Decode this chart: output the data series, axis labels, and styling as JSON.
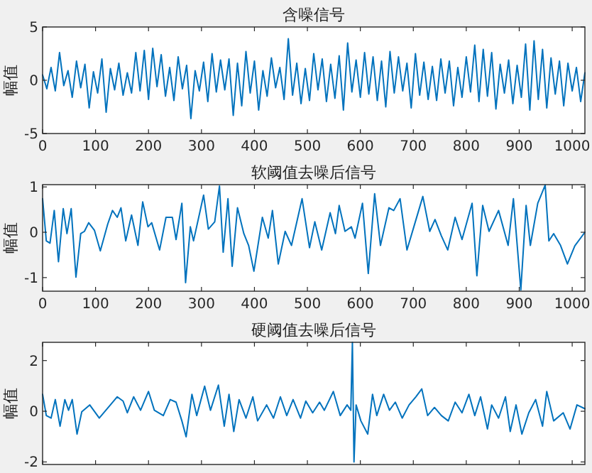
{
  "chart_data": [
    {
      "type": "line",
      "title": "含噪信号",
      "ylabel": "幅值",
      "color": "#0072bd",
      "xlim": [
        0,
        1024
      ],
      "ylim": [
        -5,
        5
      ],
      "xticks": [
        0,
        100,
        200,
        300,
        400,
        500,
        600,
        700,
        800,
        900,
        1000
      ],
      "yticks": [
        -5,
        0,
        5
      ],
      "x": [
        0,
        8,
        16,
        24,
        32,
        40,
        48,
        56,
        64,
        72,
        80,
        88,
        96,
        104,
        112,
        120,
        128,
        136,
        144,
        152,
        160,
        168,
        176,
        184,
        192,
        200,
        208,
        216,
        224,
        232,
        240,
        248,
        256,
        264,
        272,
        280,
        288,
        296,
        304,
        312,
        320,
        328,
        336,
        344,
        352,
        360,
        368,
        376,
        384,
        392,
        400,
        408,
        416,
        424,
        432,
        440,
        448,
        456,
        464,
        472,
        480,
        488,
        496,
        504,
        512,
        520,
        528,
        536,
        544,
        552,
        560,
        568,
        576,
        584,
        592,
        600,
        608,
        616,
        624,
        632,
        640,
        648,
        656,
        664,
        672,
        680,
        688,
        696,
        704,
        712,
        720,
        728,
        736,
        744,
        752,
        760,
        768,
        776,
        784,
        792,
        800,
        808,
        816,
        824,
        832,
        840,
        848,
        856,
        864,
        872,
        880,
        888,
        896,
        904,
        912,
        920,
        928,
        936,
        944,
        952,
        960,
        968,
        976,
        984,
        992,
        1000,
        1008,
        1016,
        1024
      ],
      "values": [
        0.5,
        -0.8,
        1.2,
        -1.0,
        2.6,
        -0.5,
        0.9,
        -1.6,
        1.8,
        -0.7,
        1.5,
        -2.6,
        0.8,
        -1.2,
        2.0,
        -3.0,
        1.1,
        -0.9,
        1.6,
        -1.4,
        0.7,
        -1.2,
        2.6,
        -1.0,
        2.8,
        -1.8,
        3.0,
        -0.6,
        2.4,
        -1.5,
        1.2,
        -1.9,
        2.2,
        -0.8,
        1.4,
        -3.6,
        0.9,
        -1.0,
        1.7,
        -2.0,
        2.5,
        -1.1,
        1.9,
        -0.9,
        2.0,
        -3.3,
        1.6,
        -2.4,
        2.7,
        -1.2,
        1.8,
        -2.8,
        0.9,
        -1.5,
        2.1,
        -0.7,
        1.2,
        -1.8,
        3.9,
        -1.4,
        1.6,
        -2.2,
        1.1,
        -1.9,
        2.5,
        -0.9,
        2.0,
        -2.0,
        1.5,
        -1.7,
        2.3,
        -2.8,
        3.5,
        -1.1,
        1.9,
        -1.6,
        2.6,
        -1.3,
        2.2,
        -1.9,
        1.8,
        -2.5,
        2.7,
        -1.2,
        2.2,
        -1.0,
        1.6,
        -2.6,
        2.5,
        -1.4,
        1.7,
        -1.8,
        1.3,
        -1.9,
        2.0,
        -1.2,
        1.8,
        -2.4,
        1.2,
        -1.6,
        2.2,
        -1.1,
        3.3,
        -2.0,
        2.9,
        -1.5,
        2.6,
        -2.7,
        1.5,
        -1.2,
        1.9,
        -2.2,
        1.4,
        -1.6,
        3.4,
        -2.8,
        3.7,
        -1.8,
        2.9,
        -2.6,
        2.1,
        -1.3,
        1.8,
        -2.4,
        1.6,
        -1.0,
        1.2,
        -2.0,
        0.7
      ]
    },
    {
      "type": "line",
      "title": "软阈值去噪后信号",
      "ylabel": "幅值",
      "color": "#0072bd",
      "xlim": [
        0,
        1024
      ],
      "ylim": [
        -1.3,
        1.05
      ],
      "xticks": [
        0,
        100,
        200,
        300,
        400,
        500,
        600,
        700,
        800,
        900,
        1000
      ],
      "yticks": [
        -1,
        0,
        1
      ],
      "x": [
        0,
        7,
        14,
        22,
        30,
        39,
        46,
        54,
        63,
        72,
        79,
        87,
        98,
        109,
        123,
        132,
        141,
        148,
        157,
        168,
        180,
        189,
        199,
        206,
        221,
        233,
        245,
        252,
        263,
        270,
        279,
        285,
        304,
        313,
        325,
        334,
        341,
        350,
        358,
        368,
        380,
        389,
        399,
        415,
        426,
        434,
        445,
        458,
        470,
        490,
        504,
        514,
        527,
        543,
        553,
        560,
        571,
        583,
        590,
        604,
        615,
        627,
        638,
        654,
        663,
        675,
        688,
        701,
        718,
        731,
        741,
        753,
        765,
        779,
        792,
        811,
        820,
        831,
        843,
        861,
        879,
        889,
        903,
        913,
        921,
        935,
        949,
        956,
        965,
        978,
        991,
        1005,
        1024
      ],
      "values": [
        0.74,
        -0.19,
        -0.24,
        0.48,
        -0.65,
        0.52,
        -0.03,
        0.52,
        -0.99,
        -0.03,
        0.02,
        0.21,
        0.04,
        -0.41,
        0.18,
        0.48,
        0.33,
        0.54,
        -0.19,
        0.38,
        -0.29,
        0.67,
        0.12,
        0.21,
        -0.39,
        0.33,
        0.33,
        -0.16,
        0.64,
        -1.11,
        0.12,
        -0.19,
        0.82,
        0.07,
        0.23,
        1.02,
        -0.44,
        0.74,
        -0.75,
        0.54,
        -0.03,
        -0.29,
        -0.86,
        0.33,
        -0.13,
        0.48,
        -0.7,
        0.02,
        -0.29,
        0.74,
        -0.34,
        0.23,
        -0.39,
        0.43,
        -0.03,
        0.59,
        0.02,
        0.12,
        -0.13,
        0.64,
        -0.91,
        0.85,
        -0.29,
        0.54,
        0.48,
        0.74,
        -0.39,
        0.12,
        0.79,
        0.02,
        0.28,
        -0.08,
        -0.39,
        0.33,
        -0.16,
        0.64,
        -0.96,
        0.59,
        0.02,
        0.48,
        -0.29,
        0.74,
        -1.27,
        0.59,
        -0.29,
        0.64,
        1.04,
        -0.19,
        -0.03,
        -0.29,
        -0.7,
        -0.3,
        0.0
      ]
    },
    {
      "type": "line",
      "title": "硬阈值去噪后信号",
      "ylabel": "幅值",
      "color": "#0072bd",
      "xlim": [
        0,
        1024
      ],
      "ylim": [
        -2.1,
        2.72
      ],
      "xticks": [
        0,
        100,
        200,
        300,
        400,
        500,
        600,
        700,
        800,
        900,
        1000
      ],
      "yticks": [
        -2,
        0,
        2
      ],
      "tick_labels": "y",
      "x": [
        0,
        7,
        16,
        24,
        33,
        42,
        49,
        56,
        65,
        74,
        89,
        107,
        128,
        141,
        152,
        160,
        172,
        185,
        200,
        211,
        228,
        241,
        252,
        263,
        271,
        282,
        291,
        306,
        317,
        332,
        343,
        352,
        361,
        371,
        384,
        397,
        406,
        423,
        436,
        449,
        461,
        473,
        487,
        497,
        510,
        523,
        532,
        549,
        562,
        575,
        582,
        585,
        588,
        592,
        601,
        614,
        623,
        631,
        644,
        655,
        666,
        679,
        692,
        705,
        716,
        727,
        740,
        753,
        766,
        779,
        792,
        805,
        816,
        827,
        840,
        848,
        861,
        874,
        883,
        894,
        905,
        918,
        931,
        944,
        952,
        965,
        983,
        996,
        1009,
        1024
      ],
      "values": [
        0.67,
        -0.17,
        -0.27,
        0.46,
        -0.59,
        0.46,
        0.04,
        0.46,
        -0.9,
        -0.02,
        0.25,
        -0.27,
        0.25,
        0.57,
        0.4,
        -0.06,
        0.57,
        0.04,
        0.78,
        0.04,
        -0.17,
        0.46,
        0.36,
        -0.38,
        -1.01,
        0.67,
        -0.17,
        0.99,
        0.04,
        1.03,
        -0.59,
        0.67,
        -0.8,
        0.46,
        -0.27,
        0.57,
        -0.38,
        0.25,
        -0.27,
        0.57,
        -0.17,
        0.46,
        -0.27,
        0.4,
        -0.06,
        0.36,
        0.04,
        0.78,
        -0.17,
        0.25,
        0.04,
        2.72,
        -2.0,
        0.25,
        -0.38,
        -0.9,
        0.67,
        -0.17,
        0.67,
        0.04,
        0.36,
        -0.27,
        0.25,
        0.57,
        0.88,
        -0.17,
        0.15,
        -0.17,
        -0.38,
        0.36,
        -0.06,
        0.67,
        -0.17,
        0.57,
        -0.7,
        0.25,
        -0.27,
        0.57,
        -0.8,
        0.25,
        -0.9,
        -0.06,
        0.46,
        -0.59,
        0.78,
        -0.38,
        -0.06,
        -0.7,
        0.25,
        0.1
      ]
    }
  ]
}
